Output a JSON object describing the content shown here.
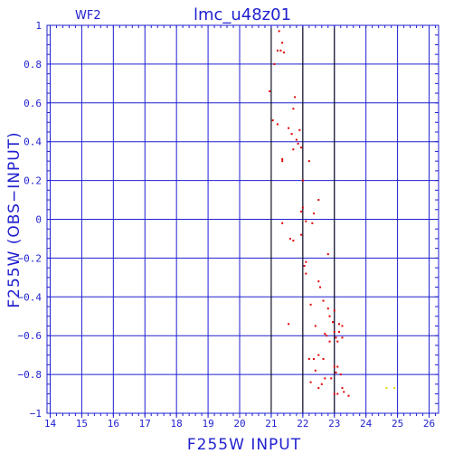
{
  "chart_data": {
    "type": "scatter",
    "title": "lmc_u48z01",
    "subtitle": "WF2",
    "xlabel": "F255W  INPUT",
    "ylabel": "F255W  (OBS−INPUT)",
    "xlim": [
      13.9,
      26.3
    ],
    "ylim": [
      -1,
      1
    ],
    "xticks": [
      14,
      15,
      16,
      17,
      18,
      19,
      20,
      21,
      22,
      23,
      24,
      25,
      26
    ],
    "yticks": [
      -1,
      -0.8,
      -0.6,
      -0.4,
      -0.2,
      0,
      0.2,
      0.4,
      0.6,
      0.8,
      1
    ],
    "ytick_labels": [
      "−1",
      "−0.8",
      "−0.6",
      "−0.4",
      "−0.2",
      "0",
      "0.2",
      "0.4",
      "0.6",
      "0.8",
      "1"
    ],
    "grid": true,
    "vlines": [
      21.0,
      22.0,
      23.0
    ],
    "colors": {
      "axes": "#1f1fd0",
      "grid": "#1f1fd0",
      "vline": "#000000",
      "points": "#e00000",
      "points_alt": "#e0e000"
    },
    "series": [
      {
        "color": "#e00000",
        "points": [
          [
            21.25,
            0.97
          ],
          [
            21.35,
            0.91
          ],
          [
            21.3,
            0.87
          ],
          [
            21.2,
            0.87
          ],
          [
            21.4,
            0.86
          ],
          [
            21.1,
            0.8
          ],
          [
            20.95,
            0.66
          ],
          [
            21.75,
            0.63
          ],
          [
            21.7,
            0.57
          ],
          [
            21.05,
            0.51
          ],
          [
            21.2,
            0.49
          ],
          [
            21.55,
            0.47
          ],
          [
            21.65,
            0.44
          ],
          [
            21.9,
            0.46
          ],
          [
            21.8,
            0.41
          ],
          [
            21.85,
            0.39
          ],
          [
            21.7,
            0.36
          ],
          [
            21.95,
            0.37
          ],
          [
            21.35,
            0.31
          ],
          [
            21.35,
            0.3
          ],
          [
            22.2,
            0.3
          ],
          [
            22.0,
            0.2
          ],
          [
            22.5,
            0.1
          ],
          [
            22.0,
            0.06
          ],
          [
            21.95,
            0.04
          ],
          [
            22.35,
            0.03
          ],
          [
            22.1,
            -0.01
          ],
          [
            21.35,
            -0.02
          ],
          [
            22.3,
            -0.02
          ],
          [
            21.95,
            -0.08
          ],
          [
            21.6,
            -0.1
          ],
          [
            21.7,
            -0.11
          ],
          [
            22.8,
            -0.18
          ],
          [
            22.1,
            -0.22
          ],
          [
            22.05,
            -0.24
          ],
          [
            22.1,
            -0.28
          ],
          [
            22.5,
            -0.32
          ],
          [
            22.55,
            -0.35
          ],
          [
            22.65,
            -0.42
          ],
          [
            22.25,
            -0.44
          ],
          [
            22.8,
            -0.46
          ],
          [
            23.0,
            -0.47
          ],
          [
            22.85,
            -0.5
          ],
          [
            22.95,
            -0.53
          ],
          [
            23.15,
            -0.54
          ],
          [
            21.55,
            -0.54
          ],
          [
            22.4,
            -0.55
          ],
          [
            23.25,
            -0.55
          ],
          [
            23.0,
            -0.58
          ],
          [
            23.15,
            -0.58
          ],
          [
            22.7,
            -0.59
          ],
          [
            22.75,
            -0.6
          ],
          [
            23.05,
            -0.61
          ],
          [
            22.85,
            -0.63
          ],
          [
            23.1,
            -0.63
          ],
          [
            23.25,
            -0.61
          ],
          [
            22.5,
            -0.7
          ],
          [
            22.2,
            -0.72
          ],
          [
            22.35,
            -0.72
          ],
          [
            22.65,
            -0.72
          ],
          [
            23.0,
            -0.76
          ],
          [
            23.1,
            -0.76
          ],
          [
            22.4,
            -0.78
          ],
          [
            23.05,
            -0.79
          ],
          [
            23.2,
            -0.8
          ],
          [
            22.9,
            -0.82
          ],
          [
            22.7,
            -0.82
          ],
          [
            22.25,
            -0.84
          ],
          [
            22.6,
            -0.85
          ],
          [
            22.5,
            -0.87
          ],
          [
            23.25,
            -0.87
          ],
          [
            23.3,
            -0.89
          ],
          [
            23.0,
            -0.9
          ],
          [
            23.1,
            -0.9
          ],
          [
            23.45,
            -0.91
          ]
        ]
      },
      {
        "color": "#e0e000",
        "points": [
          [
            24.65,
            -0.87
          ],
          [
            24.9,
            -0.87
          ]
        ]
      }
    ]
  }
}
